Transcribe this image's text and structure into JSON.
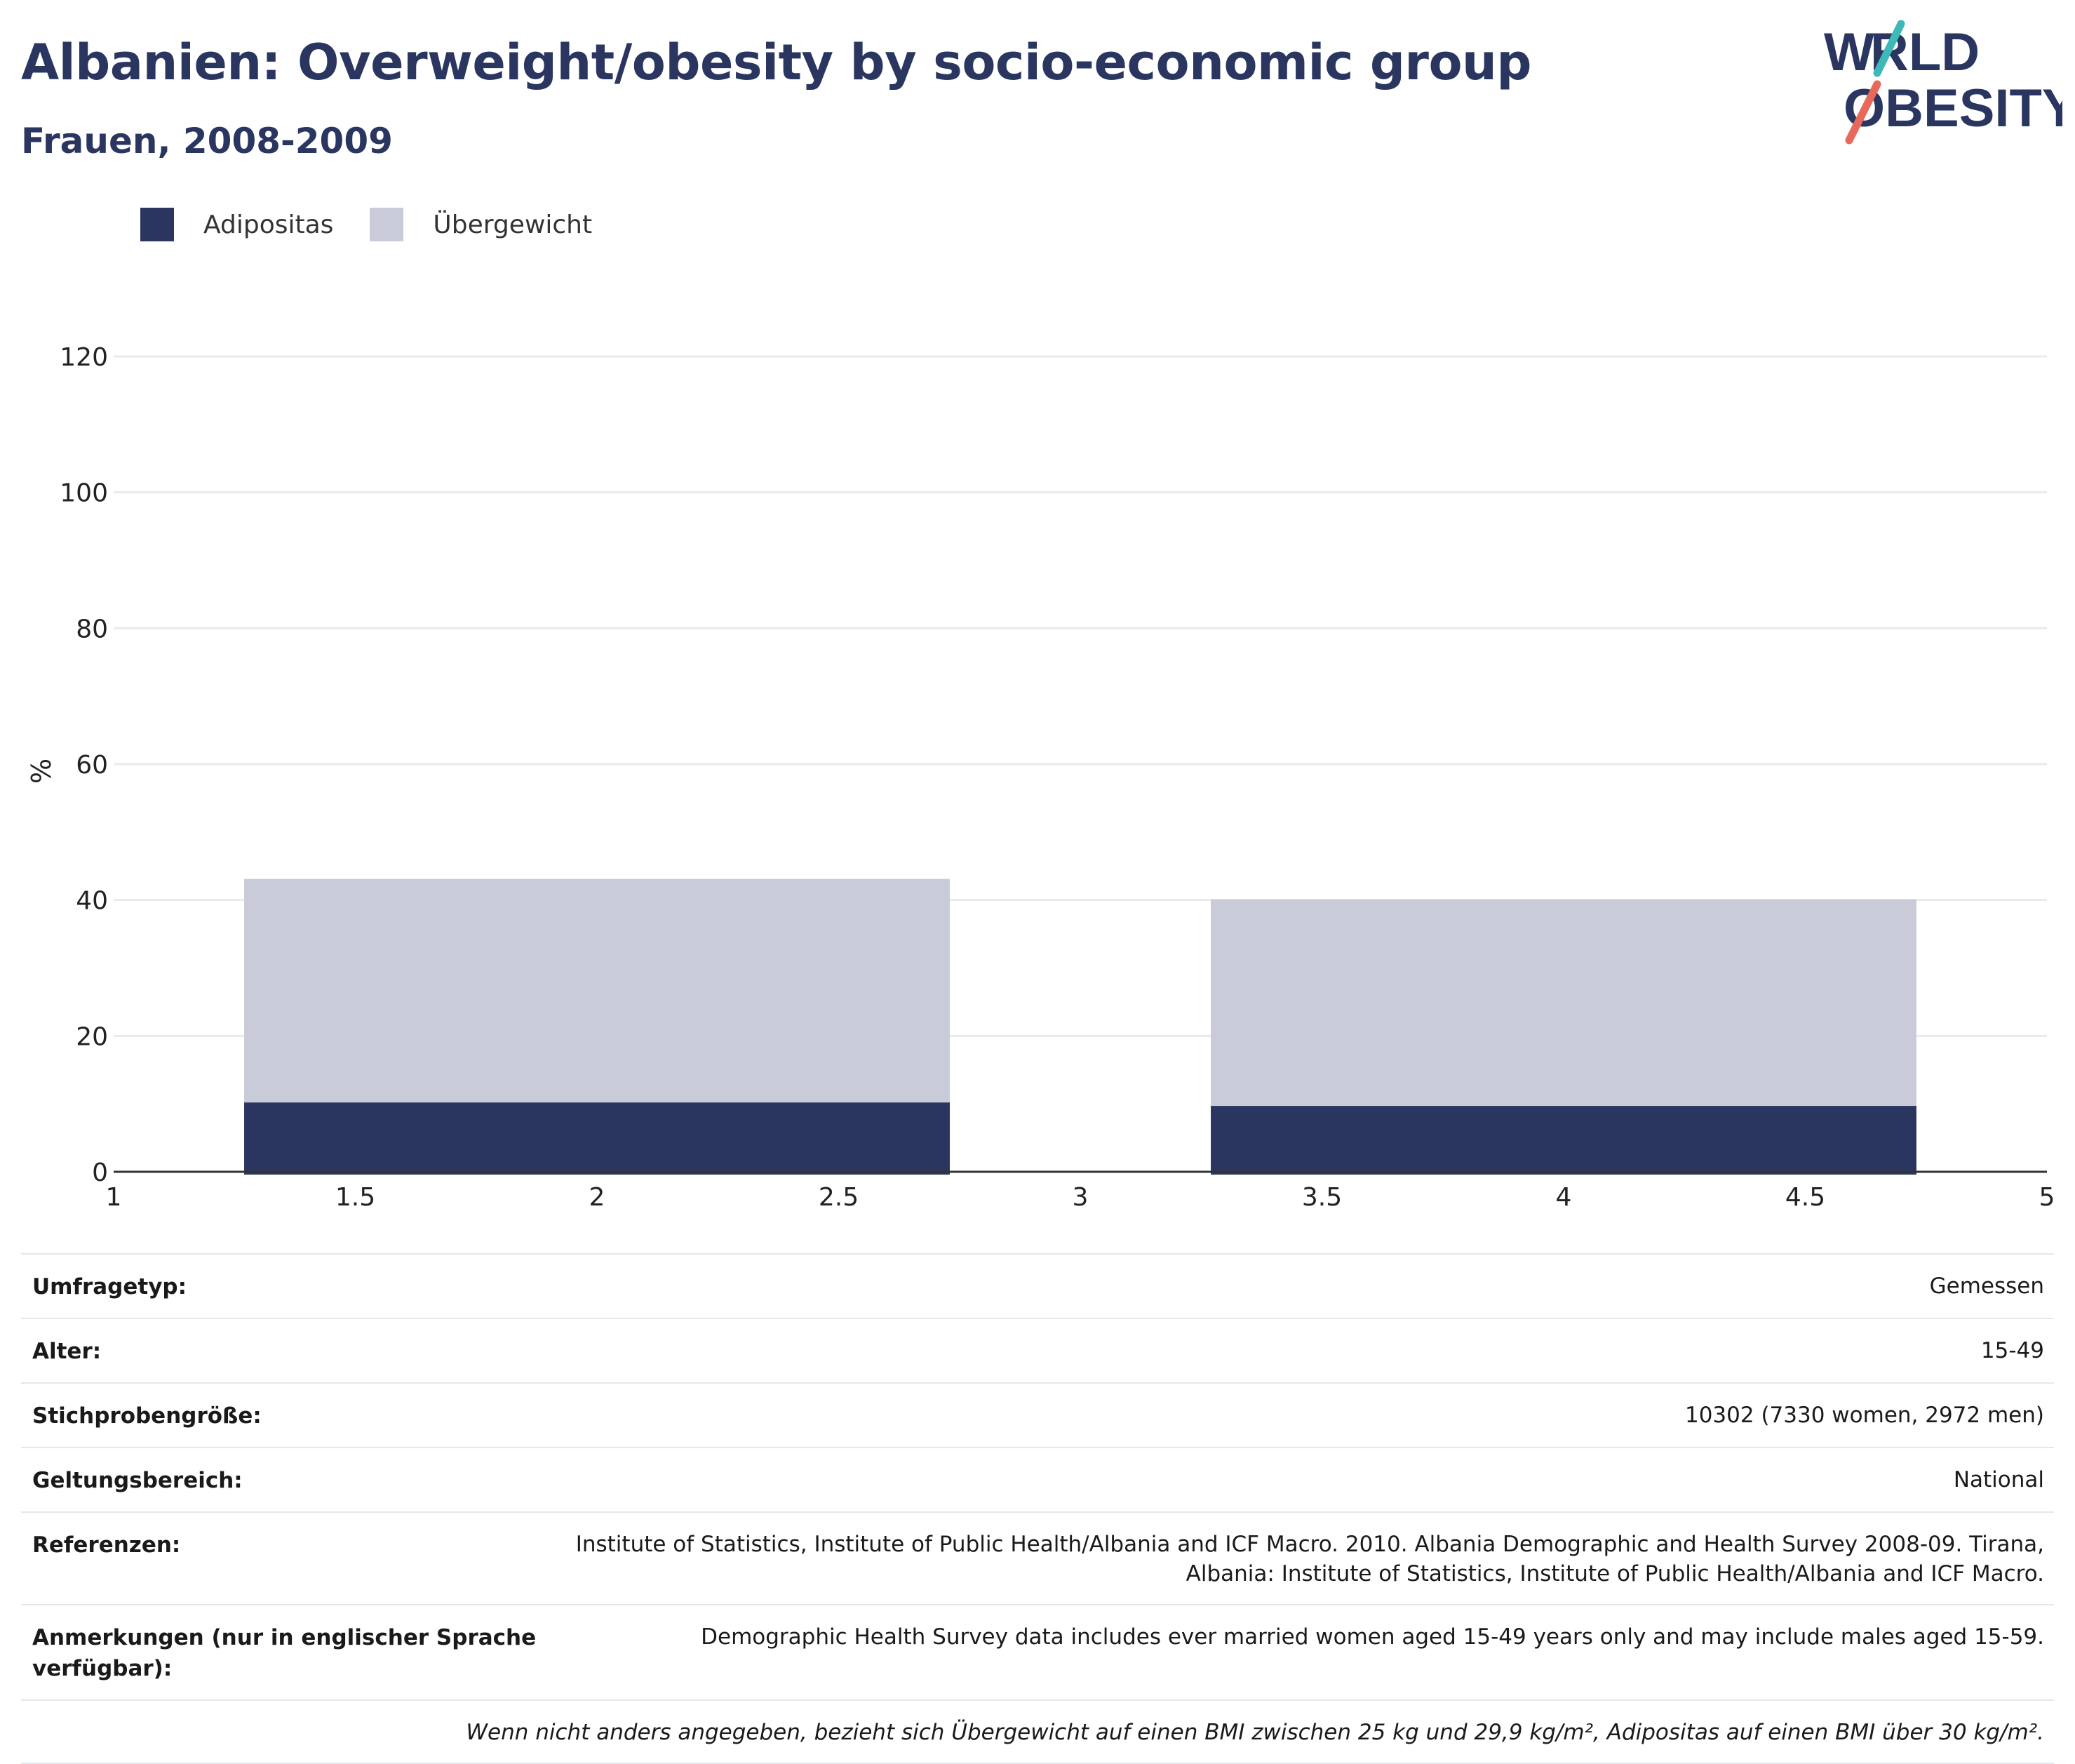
{
  "header": {
    "title": "Albanien: Overweight/obesity by socio-economic group",
    "subtitle": "Frauen, 2008-2009",
    "logo_text": "WORLD OBESITY"
  },
  "colors": {
    "adipositas": "#2a3660",
    "uebergewicht": "#c9ccd8",
    "title": "#2a3660",
    "logo_teal": "#3fb8b8",
    "logo_coral": "#e8695a"
  },
  "legend": [
    {
      "label": "Adipositas",
      "color": "#2a3660"
    },
    {
      "label": "Übergewicht",
      "color": "#c9ccd8"
    }
  ],
  "chart_data": {
    "type": "bar",
    "stacked": true,
    "ylabel": "%",
    "xlabel": "",
    "ylim": [
      0,
      120
    ],
    "yticks": [
      0,
      20,
      40,
      60,
      80,
      100,
      120
    ],
    "xlim": [
      1,
      5
    ],
    "xticks": [
      1,
      1.5,
      2,
      2.5,
      3,
      3.5,
      4,
      4.5,
      5
    ],
    "xtick_labels": [
      "1",
      "1.5",
      "2",
      "2.5",
      "3",
      "3.5",
      "4",
      "4.5",
      "5"
    ],
    "grid": true,
    "legend_position": "top-left",
    "bars": [
      {
        "x_start": 1.27,
        "x_end": 2.73,
        "adipositas": 10.2,
        "uebergewicht": 32.9
      },
      {
        "x_start": 3.27,
        "x_end": 4.73,
        "adipositas": 9.7,
        "uebergewicht": 30.4
      }
    ]
  },
  "meta": [
    {
      "label": "Umfragetyp:",
      "value": "Gemessen"
    },
    {
      "label": "Alter:",
      "value": "15-49"
    },
    {
      "label": "Stichprobengröße:",
      "value": "10302 (7330 women, 2972 men)"
    },
    {
      "label": "Geltungsbereich:",
      "value": "National"
    },
    {
      "label": "Referenzen:",
      "value": "Institute of Statistics, Institute of Public Health/Albania and ICF Macro. 2010. Albania Demographic and Health Survey 2008-09. Tirana, Albania: Institute of Statistics, Institute of Public Health/Albania and ICF Macro."
    },
    {
      "label": "Anmerkungen (nur in englischer Sprache verfügbar):",
      "value": "Demographic Health Survey data includes ever married women aged 15-49 years only and may include males aged 15-59."
    }
  ],
  "footnote": "Wenn nicht anders angegeben, bezieht sich Übergewicht auf einen BMI zwischen 25 kg und 29,9 kg/m², Adipositas auf einen BMI über 30 kg/m²."
}
